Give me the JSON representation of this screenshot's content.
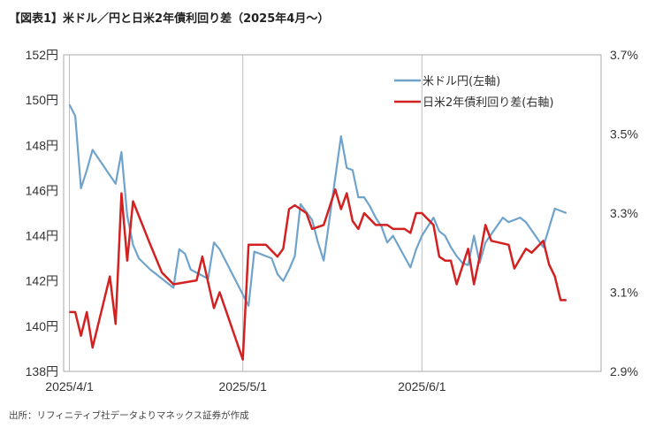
{
  "title": "【図表1】米ドル／円と日米2年債利回り差（2025年4月〜）",
  "source": "出所：リフィニティブ社データよりマネックス証券が作成",
  "chart_data": {
    "type": "line",
    "x_ticks": [
      "2025/4/1",
      "2025/5/1",
      "2025/6/1"
    ],
    "y_left": {
      "ylim": [
        138,
        152
      ],
      "ticks": [
        138,
        140,
        142,
        144,
        146,
        148,
        150,
        152
      ],
      "tick_labels": [
        "138円",
        "140円",
        "142円",
        "144円",
        "146円",
        "148円",
        "150円",
        "152円"
      ]
    },
    "y_right": {
      "ylim": [
        2.9,
        3.7
      ],
      "ticks": [
        2.9,
        3.1,
        3.3,
        3.5,
        3.7
      ],
      "tick_labels": [
        "2.9%",
        "3.1%",
        "3.3%",
        "3.5%",
        "3.7%"
      ]
    },
    "grid": "vertical",
    "legend_position": "top-right",
    "series": [
      {
        "name": "米ドル円(左軸)",
        "axis": "left",
        "color": "#6fa3cc",
        "x": [
          "2025-04-01",
          "2025-04-02",
          "2025-04-03",
          "2025-04-04",
          "2025-04-05",
          "2025-04-09",
          "2025-04-10",
          "2025-04-11",
          "2025-04-12",
          "2025-04-13",
          "2025-04-15",
          "2025-04-19",
          "2025-04-20",
          "2025-04-21",
          "2025-04-22",
          "2025-04-25",
          "2025-04-26",
          "2025-04-27",
          "2025-04-28",
          "2025-05-02",
          "2025-05-03",
          "2025-05-06",
          "2025-05-07",
          "2025-05-08",
          "2025-05-09",
          "2025-05-10",
          "2025-05-11",
          "2025-05-13",
          "2025-05-14",
          "2025-05-15",
          "2025-05-18",
          "2025-05-19",
          "2025-05-20",
          "2025-05-21",
          "2025-05-22",
          "2025-05-23",
          "2025-05-24",
          "2025-05-25",
          "2025-05-26",
          "2025-05-27",
          "2025-05-30",
          "2025-05-31",
          "2025-06-01",
          "2025-06-03",
          "2025-06-04",
          "2025-06-05",
          "2025-06-06",
          "2025-06-07",
          "2025-06-08",
          "2025-06-09",
          "2025-06-10",
          "2025-06-11",
          "2025-06-12",
          "2025-06-15",
          "2025-06-16",
          "2025-06-18",
          "2025-06-19",
          "2025-06-22",
          "2025-06-24",
          "2025-06-26"
        ],
        "values": [
          149.8,
          149.3,
          146.1,
          146.9,
          147.8,
          146.3,
          147.7,
          144.9,
          143.6,
          143.0,
          142.5,
          141.7,
          143.4,
          143.2,
          142.5,
          142.1,
          143.7,
          143.4,
          142.9,
          140.9,
          143.3,
          143.0,
          142.3,
          142.0,
          142.5,
          143.1,
          145.4,
          144.7,
          143.7,
          142.9,
          148.4,
          147.0,
          146.9,
          145.7,
          145.7,
          145.3,
          144.8,
          144.4,
          143.7,
          144.0,
          142.6,
          143.4,
          144.0,
          144.8,
          144.2,
          144.0,
          143.5,
          143.1,
          142.8,
          142.7,
          144.0,
          142.8,
          143.7,
          144.8,
          144.6,
          144.8,
          144.6,
          143.5,
          145.2,
          145.0
        ]
      },
      {
        "name": "日米2年債利回り差(右軸)",
        "axis": "right",
        "color": "#d32020",
        "x": [
          "2025-04-01",
          "2025-04-02",
          "2025-04-03",
          "2025-04-04",
          "2025-04-05",
          "2025-04-08",
          "2025-04-09",
          "2025-04-10",
          "2025-04-11",
          "2025-04-12",
          "2025-04-15",
          "2025-04-17",
          "2025-04-19",
          "2025-04-23",
          "2025-04-24",
          "2025-04-26",
          "2025-04-27",
          "2025-05-01",
          "2025-05-02",
          "2025-05-05",
          "2025-05-07",
          "2025-05-08",
          "2025-05-09",
          "2025-05-10",
          "2025-05-12",
          "2025-05-13",
          "2025-05-15",
          "2025-05-17",
          "2025-05-18",
          "2025-05-19",
          "2025-05-20",
          "2025-05-21",
          "2025-05-22",
          "2025-05-24",
          "2025-05-25",
          "2025-05-26",
          "2025-05-27",
          "2025-05-29",
          "2025-05-30",
          "2025-05-31",
          "2025-06-01",
          "2025-06-03",
          "2025-06-04",
          "2025-06-05",
          "2025-06-06",
          "2025-06-07",
          "2025-06-09",
          "2025-06-10",
          "2025-06-11",
          "2025-06-12",
          "2025-06-13",
          "2025-06-16",
          "2025-06-17",
          "2025-06-19",
          "2025-06-20",
          "2025-06-22",
          "2025-06-23",
          "2025-06-24",
          "2025-06-25",
          "2025-06-26"
        ],
        "values": [
          3.05,
          3.05,
          2.99,
          3.05,
          2.96,
          3.14,
          3.02,
          3.35,
          3.18,
          3.33,
          3.22,
          3.15,
          3.12,
          3.13,
          3.19,
          3.06,
          3.1,
          2.93,
          3.22,
          3.22,
          3.19,
          3.21,
          3.31,
          3.32,
          3.3,
          3.26,
          3.27,
          3.36,
          3.31,
          3.35,
          3.28,
          3.26,
          3.3,
          3.27,
          3.27,
          3.27,
          3.26,
          3.26,
          3.25,
          3.3,
          3.3,
          3.27,
          3.19,
          3.18,
          3.18,
          3.12,
          3.21,
          3.12,
          3.19,
          3.27,
          3.23,
          3.22,
          3.16,
          3.21,
          3.2,
          3.23,
          3.17,
          3.14,
          3.08,
          3.08
        ]
      }
    ]
  }
}
